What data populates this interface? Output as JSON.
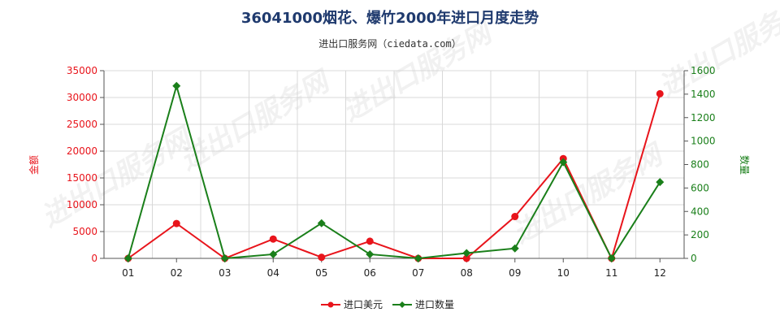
{
  "chart_data": {
    "type": "line",
    "title": "36041000烟花、爆竹2000年进口月度走势",
    "subtitle": "进出口服务网（ciedata.com）",
    "categories": [
      "01",
      "02",
      "03",
      "04",
      "05",
      "06",
      "07",
      "08",
      "09",
      "10",
      "11",
      "12"
    ],
    "y_left": {
      "label": "金额",
      "range": [
        0,
        35000
      ],
      "ticks": [
        0,
        5000,
        10000,
        15000,
        20000,
        25000,
        30000,
        35000
      ],
      "color": "#e8141b"
    },
    "y_right": {
      "label": "数量",
      "range": [
        0,
        1600
      ],
      "ticks": [
        0,
        200,
        400,
        600,
        800,
        1000,
        1200,
        1400,
        1600
      ],
      "color": "#1a7f1a"
    },
    "series": [
      {
        "name": "进口美元",
        "axis": "left",
        "color": "#e8141b",
        "marker": "circle",
        "values": [
          0,
          6500,
          0,
          3600,
          200,
          3200,
          0,
          0,
          7800,
          18600,
          0,
          30700
        ]
      },
      {
        "name": "进口数量",
        "axis": "right",
        "color": "#1a7f1a",
        "marker": "diamond",
        "values": [
          0,
          1470,
          0,
          35,
          300,
          35,
          0,
          45,
          85,
          820,
          0,
          650
        ]
      }
    ],
    "grid": true,
    "legend_position": "bottom-center",
    "watermark": "进出口服务网"
  }
}
